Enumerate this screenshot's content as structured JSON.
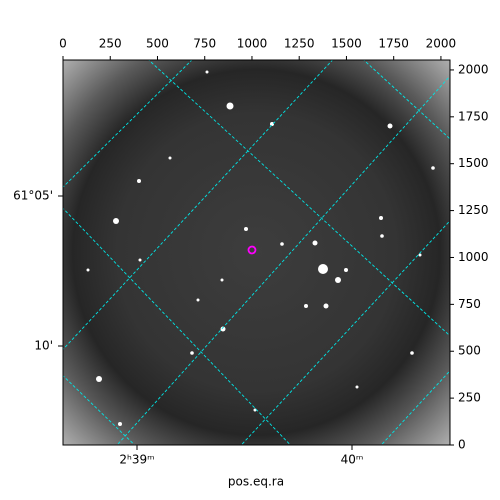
{
  "chart_data": {
    "type": "image",
    "x_label": "pos.eq.ra",
    "xlim": [
      0,
      2048
    ],
    "ylim": [
      0,
      2053
    ],
    "xticks": [
      0,
      250,
      500,
      750,
      1000,
      1250,
      1500,
      1750,
      2000
    ],
    "yticks": [
      0,
      250,
      500,
      750,
      1000,
      1250,
      1500,
      1750,
      2000
    ],
    "ra_tick_labels": [
      "2ʰ39ᵐ",
      "40ᵐ"
    ],
    "dec_tick_labels": [
      "61°05'",
      "10'"
    ],
    "grid_color": "#00e5e5",
    "marker": {
      "x": 1000,
      "y": 1040,
      "color": "#ff00ff"
    }
  }
}
